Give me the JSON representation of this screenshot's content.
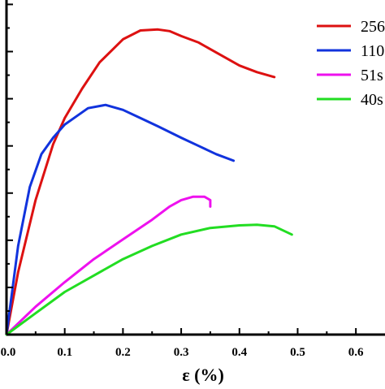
{
  "chart_data": {
    "type": "line",
    "title": "",
    "xlabel": "ε (%)",
    "ylabel": "",
    "xlim": [
      0,
      0.65
    ],
    "ylim": [
      0,
      1.0
    ],
    "x_ticks": [
      "0.0",
      "0.1",
      "0.2",
      "0.3",
      "0.4",
      "0.5",
      "0.6"
    ],
    "y_tick_count": 7,
    "grid": false,
    "legend_position": "top-right",
    "series": [
      {
        "name": "256",
        "color": "#dd1111",
        "x": [
          0,
          0.02,
          0.05,
          0.08,
          0.1,
          0.13,
          0.16,
          0.2,
          0.23,
          0.26,
          0.28,
          0.3,
          0.33,
          0.36,
          0.4,
          0.43,
          0.46
        ],
        "y": [
          0,
          0.19,
          0.41,
          0.58,
          0.66,
          0.75,
          0.83,
          0.9,
          0.927,
          0.93,
          0.925,
          0.91,
          0.89,
          0.86,
          0.82,
          0.8,
          0.785
        ]
      },
      {
        "name": "110",
        "color": "#1133dd",
        "x": [
          0,
          0.02,
          0.04,
          0.06,
          0.08,
          0.1,
          0.12,
          0.14,
          0.17,
          0.2,
          0.23,
          0.26,
          0.3,
          0.33,
          0.36,
          0.39
        ],
        "y": [
          0,
          0.27,
          0.45,
          0.55,
          0.6,
          0.64,
          0.665,
          0.69,
          0.7,
          0.685,
          0.66,
          0.635,
          0.6,
          0.575,
          0.55,
          0.53
        ]
      },
      {
        "name": "51s",
        "color": "#ee11ee",
        "x": [
          0,
          0.05,
          0.1,
          0.15,
          0.2,
          0.25,
          0.28,
          0.3,
          0.32,
          0.34,
          0.35,
          0.35
        ],
        "y": [
          0,
          0.085,
          0.16,
          0.23,
          0.29,
          0.35,
          0.39,
          0.41,
          0.42,
          0.42,
          0.41,
          0.39
        ]
      },
      {
        "name": "40s",
        "color": "#22dd22",
        "x": [
          0,
          0.05,
          0.1,
          0.15,
          0.2,
          0.25,
          0.3,
          0.35,
          0.4,
          0.43,
          0.46,
          0.49
        ],
        "y": [
          0,
          0.065,
          0.13,
          0.18,
          0.23,
          0.27,
          0.305,
          0.325,
          0.333,
          0.335,
          0.33,
          0.305
        ]
      }
    ]
  }
}
